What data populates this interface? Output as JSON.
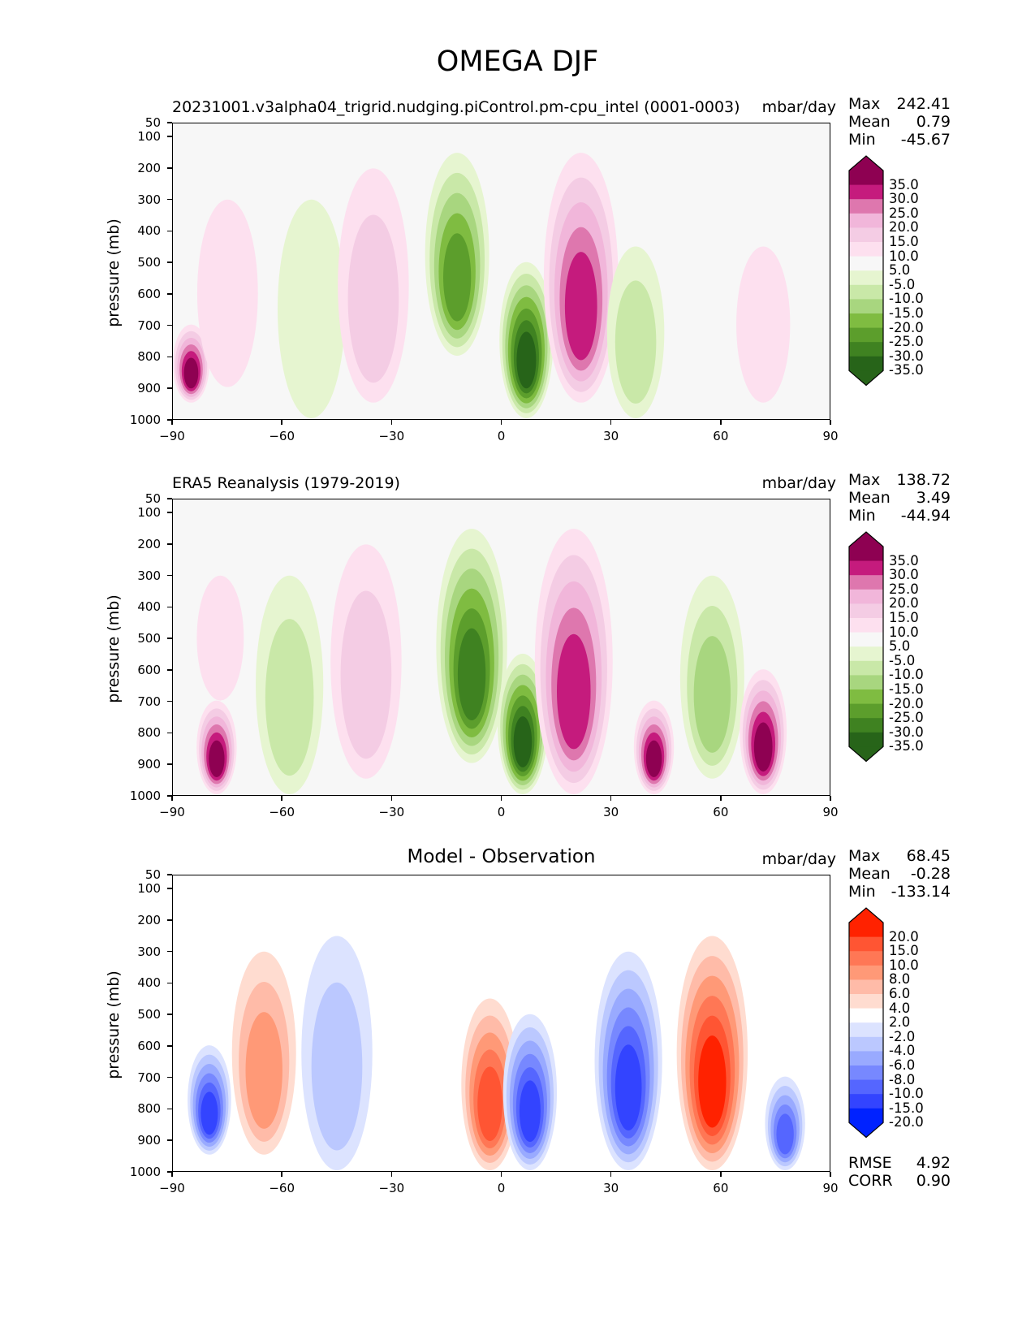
{
  "figure": {
    "title": "OMEGA DJF"
  },
  "panels": [
    {
      "title": "20231001.v3alpha04_trigrid.nudging.piControl.pm-cpu_intel (0001-0003)",
      "units": "mbar/day",
      "stats": {
        "max_label": "Max",
        "max": "242.41",
        "mean_label": "Mean",
        "mean": "0.79",
        "min_label": "Min",
        "min": "-45.67"
      },
      "ylabel": "pressure (mb)",
      "colorbar": [
        "35.0",
        "30.0",
        "25.0",
        "20.0",
        "15.0",
        "10.0",
        "5.0",
        "-5.0",
        "-10.0",
        "-15.0",
        "-20.0",
        "-25.0",
        "-30.0",
        "-35.0"
      ]
    },
    {
      "title": "ERA5 Reanalysis (1979-2019)",
      "units": "mbar/day",
      "stats": {
        "max_label": "Max",
        "max": "138.72",
        "mean_label": "Mean",
        "mean": "3.49",
        "min_label": "Min",
        "min": "-44.94"
      },
      "ylabel": "pressure (mb)",
      "colorbar": [
        "35.0",
        "30.0",
        "25.0",
        "20.0",
        "15.0",
        "10.0",
        "5.0",
        "-5.0",
        "-10.0",
        "-15.0",
        "-20.0",
        "-25.0",
        "-30.0",
        "-35.0"
      ]
    },
    {
      "title": "Model - Observation",
      "units": "mbar/day",
      "stats": {
        "max_label": "Max",
        "max": "68.45",
        "mean_label": "Mean",
        "mean": "-0.28",
        "min_label": "Min",
        "min": "-133.14"
      },
      "ylabel": "pressure (mb)",
      "colorbar": [
        "20.0",
        "15.0",
        "10.0",
        "8.0",
        "6.0",
        "4.0",
        "2.0",
        "-2.0",
        "-4.0",
        "-6.0",
        "-8.0",
        "-10.0",
        "-15.0",
        "-20.0"
      ],
      "metrics": {
        "rmse_label": "RMSE",
        "rmse": "4.92",
        "corr_label": "CORR",
        "corr": "0.90"
      }
    }
  ],
  "axes": {
    "yticks": [
      "50",
      "100",
      "200",
      "300",
      "400",
      "500",
      "600",
      "700",
      "800",
      "900",
      "1000"
    ],
    "xticks": [
      "−90",
      "−60",
      "−30",
      "0",
      "30",
      "60",
      "90"
    ]
  },
  "colors": {
    "piyg": [
      "#8e0152",
      "#c51b7d",
      "#de77ae",
      "#f1b6da",
      "#f4cce4",
      "#fde0ef",
      "#f7f7f7",
      "#e6f5d0",
      "#c9e8a8",
      "#a8d67f",
      "#7fbc41",
      "#5c9e2c",
      "#3f8221",
      "#276419"
    ],
    "bwr": [
      "#ff2200",
      "#ff5533",
      "#ff7755",
      "#ff9977",
      "#ffbba8",
      "#ffdcd0",
      "#ffffff",
      "#dce3ff",
      "#bbc8ff",
      "#99aaff",
      "#7788ff",
      "#5566ff",
      "#3344ff",
      "#0022ff"
    ]
  },
  "chart_data": [
    {
      "type": "heatmap",
      "title": "20231001.v3alpha04_trigrid.nudging.piControl.pm-cpu_intel (0001-0003)",
      "xlabel": "",
      "ylabel": "pressure (mb)",
      "units": "mbar/day",
      "xlim": [
        -90,
        90
      ],
      "ylim": [
        1000,
        50
      ],
      "levels": [
        -35,
        -30,
        -25,
        -20,
        -15,
        -10,
        -5,
        5,
        10,
        15,
        20,
        25,
        30,
        35
      ],
      "features": [
        {
          "lat": -85,
          "p_top": 700,
          "p_bottom": 950,
          "value": 40
        },
        {
          "lat": -75,
          "p_top": 300,
          "p_bottom": 900,
          "value": 6
        },
        {
          "lat": -52,
          "p_top": 300,
          "p_bottom": 1000,
          "value": -8
        },
        {
          "lat": -35,
          "p_top": 200,
          "p_bottom": 950,
          "value": 12
        },
        {
          "lat": -12,
          "p_top": 150,
          "p_bottom": 800,
          "value": -28
        },
        {
          "lat": 7,
          "p_top": 500,
          "p_bottom": 1000,
          "value": -40
        },
        {
          "lat": 22,
          "p_top": 150,
          "p_bottom": 950,
          "value": 25
        },
        {
          "lat": 37,
          "p_top": 450,
          "p_bottom": 1000,
          "value": -10
        },
        {
          "lat": 72,
          "p_top": 450,
          "p_bottom": 950,
          "value": 6
        }
      ],
      "stats": {
        "max": 242.41,
        "mean": 0.79,
        "min": -45.67
      }
    },
    {
      "type": "heatmap",
      "title": "ERA5 Reanalysis (1979-2019)",
      "xlabel": "",
      "ylabel": "pressure (mb)",
      "units": "mbar/day",
      "xlim": [
        -90,
        90
      ],
      "ylim": [
        1000,
        50
      ],
      "levels": [
        -35,
        -30,
        -25,
        -20,
        -15,
        -10,
        -5,
        5,
        10,
        15,
        20,
        25,
        30,
        35
      ],
      "features": [
        {
          "lat": -78,
          "p_top": 700,
          "p_bottom": 1000,
          "value": 40
        },
        {
          "lat": -77,
          "p_top": 300,
          "p_bottom": 700,
          "value": 8
        },
        {
          "lat": -58,
          "p_top": 300,
          "p_bottom": 1000,
          "value": -12
        },
        {
          "lat": -37,
          "p_top": 200,
          "p_bottom": 950,
          "value": 12
        },
        {
          "lat": -8,
          "p_top": 150,
          "p_bottom": 900,
          "value": -30
        },
        {
          "lat": 6,
          "p_top": 550,
          "p_bottom": 1000,
          "value": -40
        },
        {
          "lat": 20,
          "p_top": 150,
          "p_bottom": 1000,
          "value": 28
        },
        {
          "lat": 42,
          "p_top": 700,
          "p_bottom": 1000,
          "value": 35
        },
        {
          "lat": 58,
          "p_top": 300,
          "p_bottom": 950,
          "value": -15
        },
        {
          "lat": 72,
          "p_top": 600,
          "p_bottom": 1000,
          "value": 40
        }
      ],
      "stats": {
        "max": 138.72,
        "mean": 3.49,
        "min": -44.94
      }
    },
    {
      "type": "heatmap",
      "title": "Model - Observation",
      "xlabel": "",
      "ylabel": "pressure (mb)",
      "units": "mbar/day",
      "xlim": [
        -90,
        90
      ],
      "ylim": [
        1000,
        50
      ],
      "levels": [
        -20,
        -15,
        -10,
        -8,
        -6,
        -4,
        -2,
        2,
        4,
        6,
        8,
        10,
        15,
        20
      ],
      "features": [
        {
          "lat": -80,
          "p_top": 600,
          "p_bottom": 950,
          "value": -15
        },
        {
          "lat": -65,
          "p_top": 300,
          "p_bottom": 950,
          "value": 6
        },
        {
          "lat": -45,
          "p_top": 250,
          "p_bottom": 1000,
          "value": -4
        },
        {
          "lat": -3,
          "p_top": 450,
          "p_bottom": 1000,
          "value": 12
        },
        {
          "lat": 8,
          "p_top": 500,
          "p_bottom": 1000,
          "value": -15
        },
        {
          "lat": 35,
          "p_top": 300,
          "p_bottom": 1000,
          "value": -15
        },
        {
          "lat": 58,
          "p_top": 250,
          "p_bottom": 1000,
          "value": 15
        },
        {
          "lat": 78,
          "p_top": 700,
          "p_bottom": 1000,
          "value": -12
        }
      ],
      "stats": {
        "max": 68.45,
        "mean": -0.28,
        "min": -133.14,
        "rmse": 4.92,
        "corr": 0.9
      }
    }
  ]
}
